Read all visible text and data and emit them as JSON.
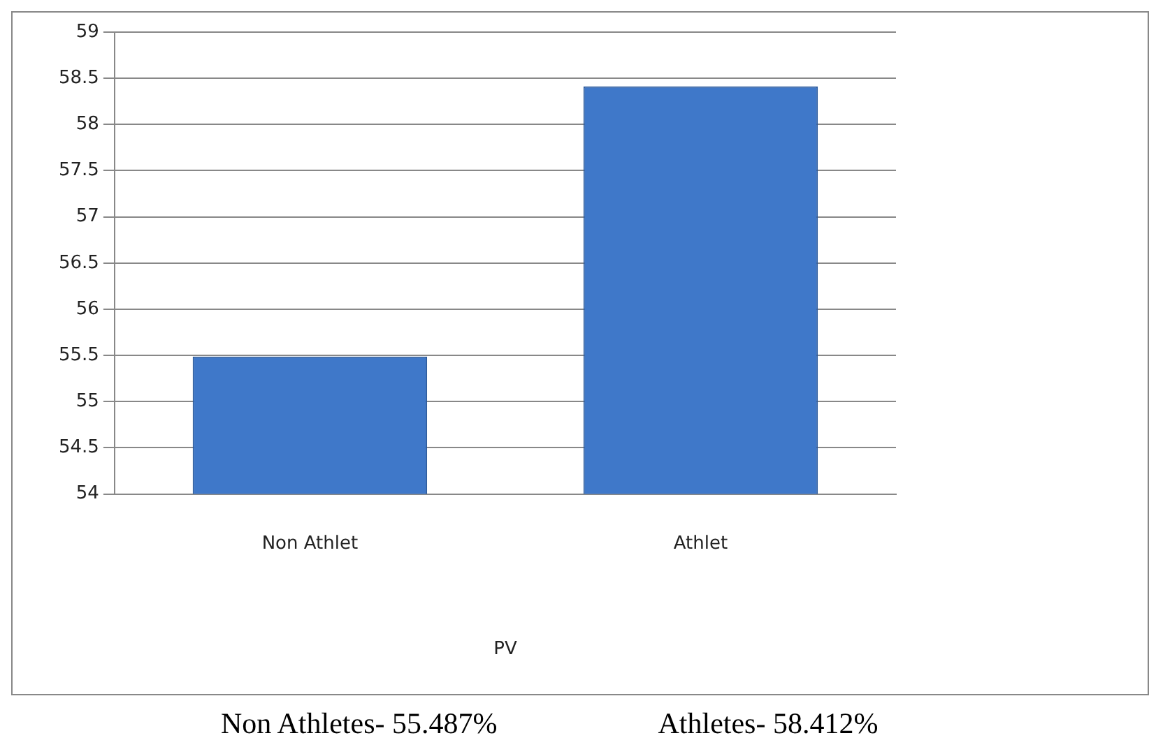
{
  "chart_data": {
    "type": "bar",
    "categories": [
      "Non Athlet",
      "Athlet"
    ],
    "xlabel": "PV",
    "series": [
      {
        "color": "#3f78c9",
        "values": [
          55.487,
          58.412
        ]
      }
    ],
    "ylim": [
      54,
      59
    ],
    "yticks": [
      54,
      54.5,
      55,
      55.5,
      56,
      56.5,
      57,
      57.5,
      58,
      58.5,
      59
    ],
    "grid": "y",
    "legend": false,
    "annotations": [
      "Non Athletes- 55.487%",
      "Athletes- 58.412%"
    ]
  }
}
